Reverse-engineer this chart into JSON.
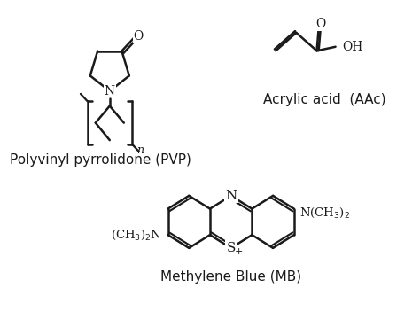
{
  "background_color": "#ffffff",
  "title_pvp": "Polyvinyl pyrrolidone (PVP)",
  "title_aac": "Acrylic acid  (AAc)",
  "title_mb": "Methylene Blue (MB)",
  "text_color": "#1a1a1a",
  "line_color": "#1a1a1a",
  "line_width": 1.8,
  "font_size_label": 11,
  "font_size_atom": 10
}
